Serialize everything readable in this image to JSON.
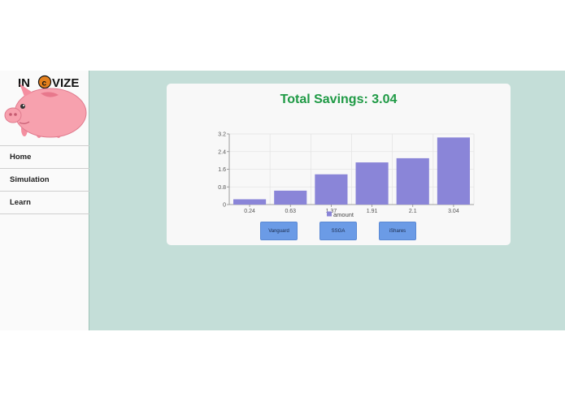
{
  "logo": {
    "text_left": "IN",
    "text_right": "VIZE"
  },
  "nav": {
    "items": [
      "Home",
      "Simulation",
      "Learn"
    ]
  },
  "savings": {
    "title": "Total Savings: 3.04"
  },
  "chart_data": {
    "type": "bar",
    "categories": [
      "0.24",
      "0.63",
      "1.37",
      "1.91",
      "2.1",
      "3.04"
    ],
    "series": [
      {
        "name": "amount",
        "values": [
          0.24,
          0.63,
          1.37,
          1.91,
          2.1,
          3.04
        ]
      }
    ],
    "yticks": [
      "0",
      "0.8",
      "1.6",
      "2.4",
      "3.2"
    ],
    "ylim": [
      0,
      3.2
    ],
    "grid": true,
    "legend": "bottom",
    "bar_color": "#8a85d8"
  },
  "buttons": [
    "Vanguard",
    "SSGA",
    "iShares"
  ],
  "colors": {
    "background": "#c4ded8",
    "title": "#1f9a45",
    "button": "#6b9be6"
  }
}
